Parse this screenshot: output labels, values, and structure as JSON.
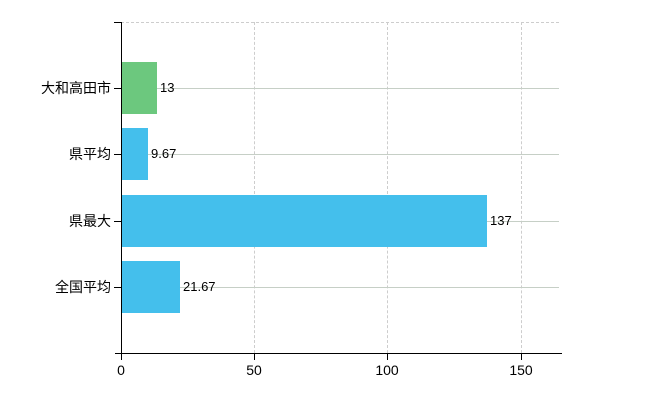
{
  "chart_data": {
    "type": "bar",
    "orientation": "horizontal",
    "title": "",
    "categories": [
      "大和高田市",
      "県平均",
      "県最大",
      "全国平均"
    ],
    "values": [
      13,
      9.67,
      137,
      21.67
    ],
    "value_labels": [
      "13",
      "9.67",
      "137",
      "21.67"
    ],
    "bar_colors": [
      "#6cc87e",
      "#44bfec",
      "#44bfec",
      "#44bfec"
    ],
    "x_ticks": [
      0,
      50,
      100,
      150
    ],
    "x_tick_labels": [
      "0",
      "50",
      "100",
      "150"
    ],
    "xlim": [
      0,
      164.4
    ],
    "grid": true,
    "legend": false,
    "colors": {
      "axis": "#000000",
      "grid_dashed": "#cdcdcd",
      "grid_solid": "#c6cfc6",
      "text": "#000000",
      "background": "#ffffff"
    }
  }
}
